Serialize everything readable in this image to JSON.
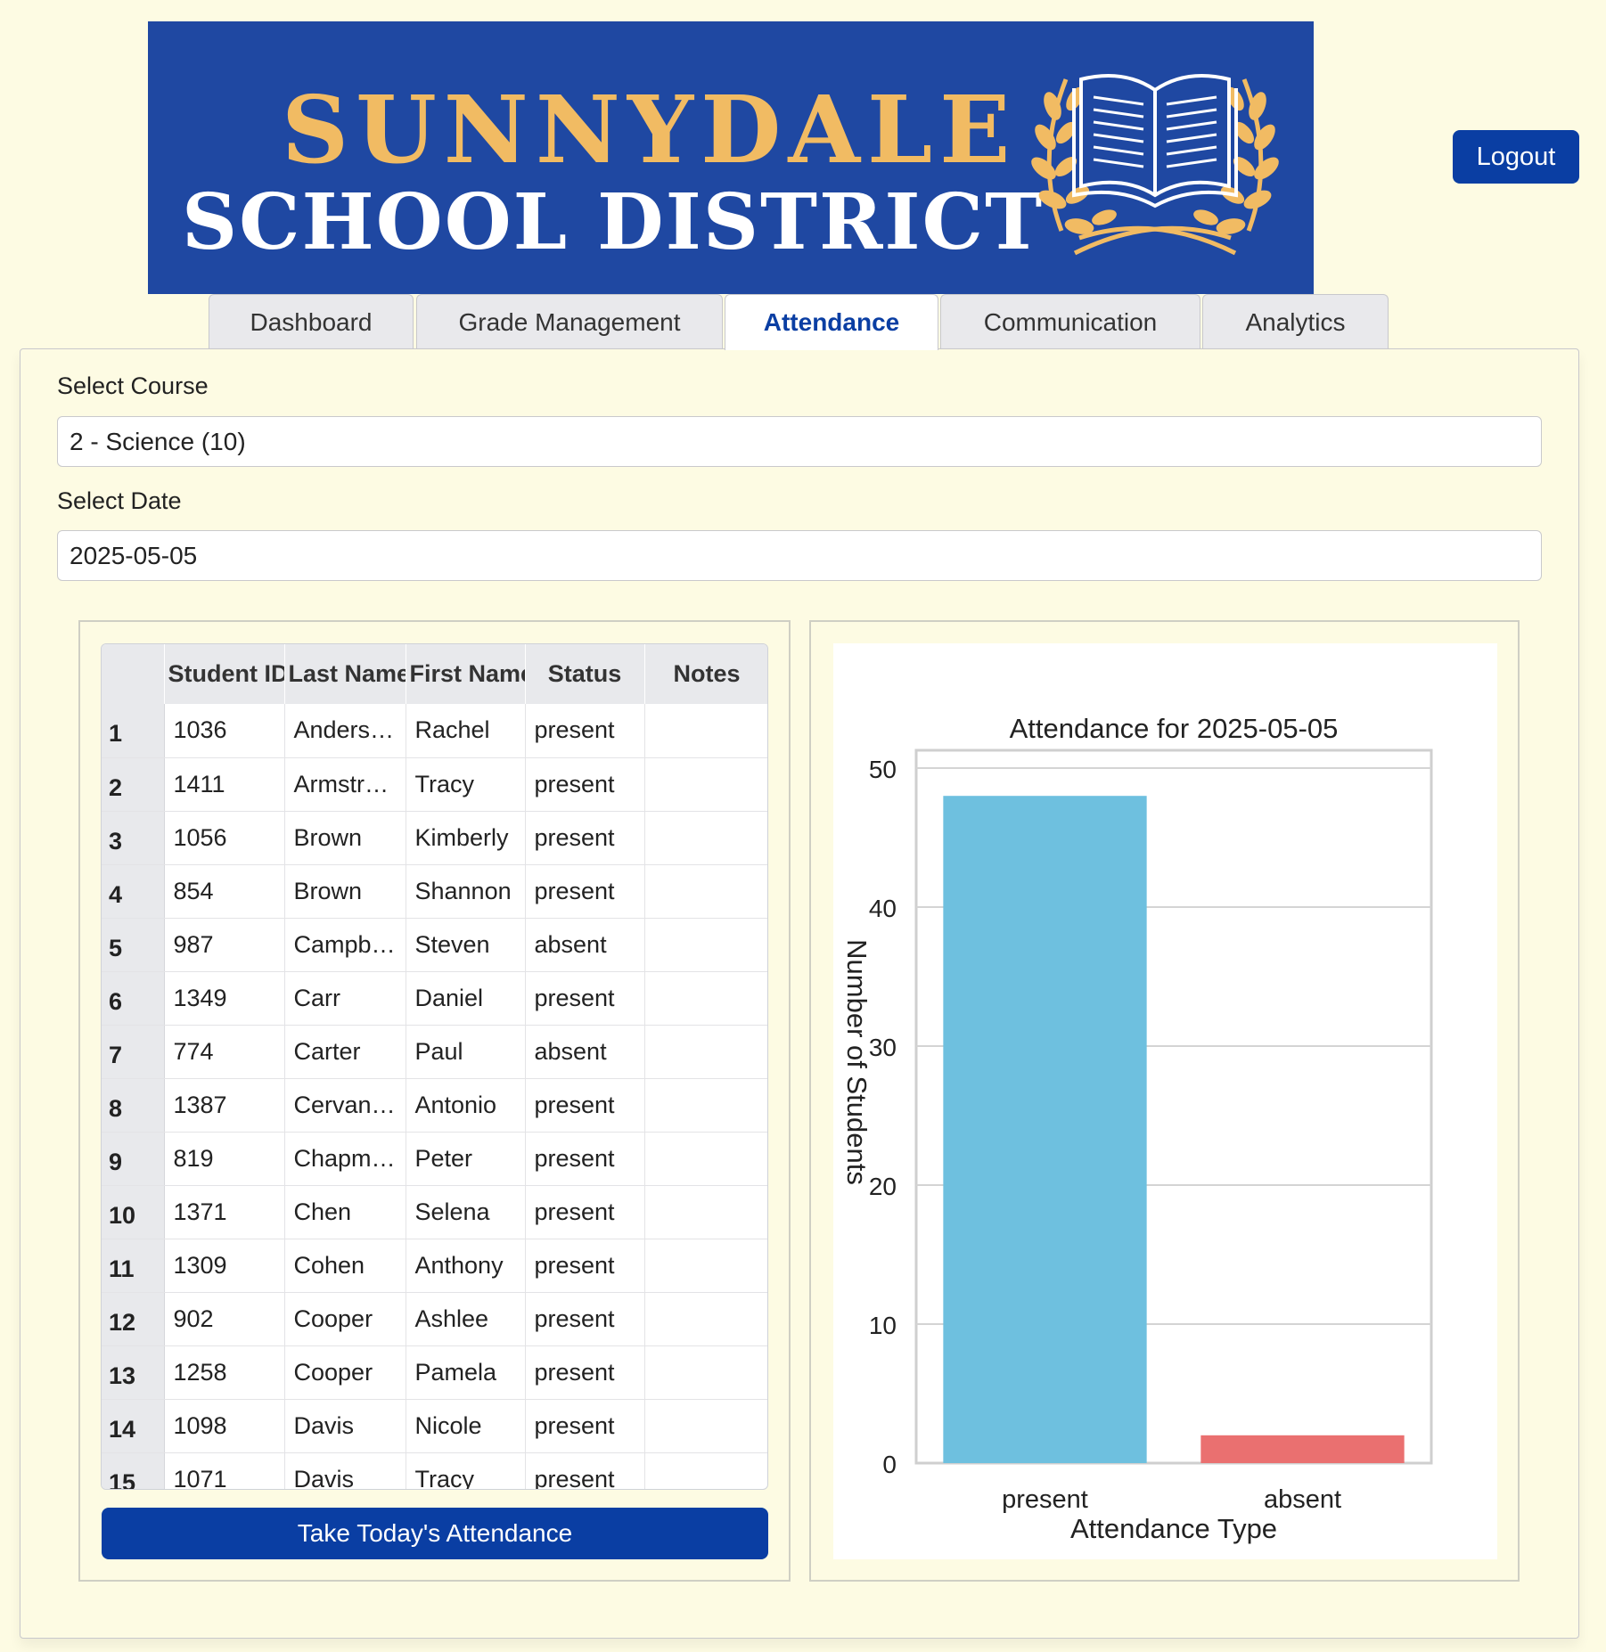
{
  "banner": {
    "line1": "SUNNYDALE",
    "line2": "SCHOOL DISTRICT",
    "bg_color": "#1f48a2",
    "gold_color": "#f1bb63"
  },
  "header": {
    "logout_label": "Logout"
  },
  "tabs": [
    {
      "label": "Dashboard",
      "active": false
    },
    {
      "label": "Grade Management",
      "active": false
    },
    {
      "label": "Attendance",
      "active": true
    },
    {
      "label": "Communication",
      "active": false
    },
    {
      "label": "Analytics",
      "active": false
    }
  ],
  "form": {
    "course_label": "Select Course",
    "course_value": "2 - Science (10)",
    "date_label": "Select Date",
    "date_value": "2025-05-05"
  },
  "table": {
    "columns": [
      "Student ID",
      "Last Name",
      "First Name",
      "Status",
      "Notes"
    ],
    "rows": [
      [
        "1",
        "1036",
        "Anders…",
        "Rachel",
        "present",
        ""
      ],
      [
        "2",
        "1411",
        "Armstr…",
        "Tracy",
        "present",
        ""
      ],
      [
        "3",
        "1056",
        "Brown",
        "Kimberly",
        "present",
        ""
      ],
      [
        "4",
        "854",
        "Brown",
        "Shannon",
        "present",
        ""
      ],
      [
        "5",
        "987",
        "Campb…",
        "Steven",
        "absent",
        ""
      ],
      [
        "6",
        "1349",
        "Carr",
        "Daniel",
        "present",
        ""
      ],
      [
        "7",
        "774",
        "Carter",
        "Paul",
        "absent",
        ""
      ],
      [
        "8",
        "1387",
        "Cervan…",
        "Antonio",
        "present",
        ""
      ],
      [
        "9",
        "819",
        "Chapm…",
        "Peter",
        "present",
        ""
      ],
      [
        "10",
        "1371",
        "Chen",
        "Selena",
        "present",
        ""
      ],
      [
        "11",
        "1309",
        "Cohen",
        "Anthony",
        "present",
        ""
      ],
      [
        "12",
        "902",
        "Cooper",
        "Ashlee",
        "present",
        ""
      ],
      [
        "13",
        "1258",
        "Cooper",
        "Pamela",
        "present",
        ""
      ],
      [
        "14",
        "1098",
        "Davis",
        "Nicole",
        "present",
        ""
      ],
      [
        "15",
        "1071",
        "Davis",
        "Tracy",
        "present",
        ""
      ]
    ]
  },
  "actions": {
    "take_attendance_label": "Take Today's Attendance"
  },
  "chart_data": {
    "type": "bar",
    "title": "Attendance for 2025-05-05",
    "xlabel": "Attendance Type",
    "ylabel": "Number of Students",
    "categories": [
      "present",
      "absent"
    ],
    "values": [
      48,
      2
    ],
    "colors": [
      "#6ec0df",
      "#ea7070"
    ],
    "ylim": [
      0,
      50
    ],
    "yticks": [
      0,
      10,
      20,
      30,
      40,
      50
    ],
    "grid": true
  }
}
